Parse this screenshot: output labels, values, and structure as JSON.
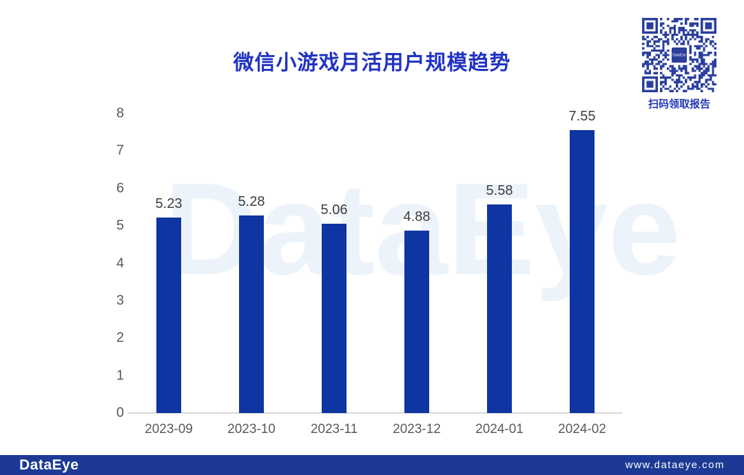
{
  "title": "微信小游戏月活用户规模趋势",
  "watermark": "DataEye",
  "qr": {
    "caption": "扫码领取报告",
    "center_label": "DataEye"
  },
  "footer": {
    "logo": "DataEye",
    "url": "www.dataeye.com"
  },
  "colors": {
    "title": "#2133c4",
    "bar": "#0e35a2",
    "footer_bg": "#1c3a95",
    "qr": "#2b3f9e",
    "caption": "#2438b8",
    "watermark": "#edf3fb",
    "axis_line": "#d9d9d9",
    "tick_label": "#595959",
    "value_label": "#3d3d3d"
  },
  "chart_data": {
    "type": "bar",
    "title": "微信小游戏月活用户规模趋势",
    "categories": [
      "2023-09",
      "2023-10",
      "2023-11",
      "2023-12",
      "2024-01",
      "2024-02"
    ],
    "values": [
      5.23,
      5.28,
      5.06,
      4.88,
      5.58,
      7.55
    ],
    "xlabel": "",
    "ylabel": "",
    "ylim": [
      0,
      8
    ],
    "y_ticks": [
      0,
      1,
      2,
      3,
      4,
      5,
      6,
      7,
      8
    ],
    "grid": false,
    "legend": "none",
    "value_labels_shown": true
  }
}
